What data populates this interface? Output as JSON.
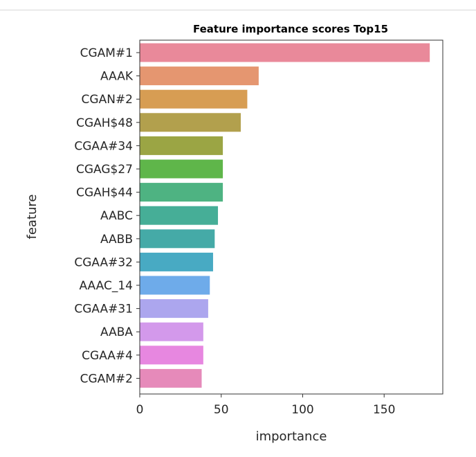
{
  "chart_data": {
    "type": "bar",
    "orientation": "horizontal",
    "title": "Feature importance scores Top15",
    "xlabel": "importance",
    "ylabel": "feature",
    "xlim": [
      0,
      186
    ],
    "xticks": [
      0,
      50,
      100,
      150
    ],
    "grid": false,
    "legend": "none",
    "categories": [
      "CGAM#1",
      "AAAK",
      "CGAN#2",
      "CGAH$48",
      "CGAA#34",
      "CGAG$27",
      "CGAH$44",
      "AABC",
      "AABB",
      "CGAA#32",
      "AAAC_14",
      "CGAA#31",
      "AABA",
      "CGAA#4",
      "CGAM#2"
    ],
    "values": [
      178,
      73,
      66,
      62,
      51,
      51,
      51,
      48,
      46,
      45,
      43,
      42,
      39,
      39,
      38
    ],
    "colors": [
      "#e9899a",
      "#e59670",
      "#d79d53",
      "#b2a04d",
      "#9ba544",
      "#5fb64a",
      "#4eb382",
      "#46ae97",
      "#45aaa7",
      "#48aac3",
      "#6eabea",
      "#aca6ee",
      "#d399eb",
      "#e787e0",
      "#e68aba"
    ]
  }
}
